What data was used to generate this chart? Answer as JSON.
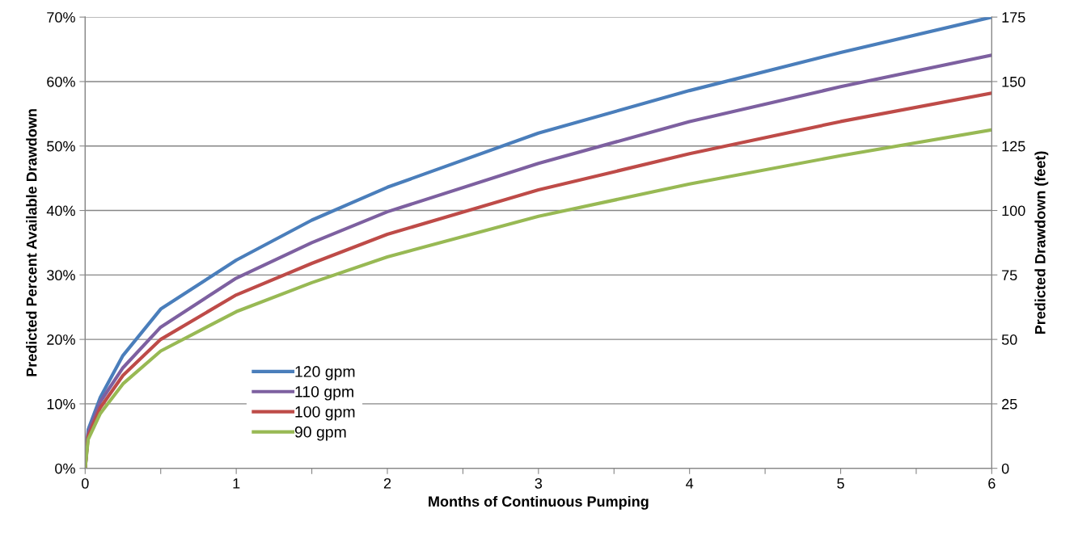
{
  "chart_data": {
    "type": "line",
    "xlabel": "Months of Continuous Pumping",
    "ylabel": "Predicted Percent Available Drawdown",
    "y2label": "Predicted Drawdown (feet)",
    "x": [
      0,
      0.02,
      0.1,
      0.25,
      0.5,
      1,
      1.5,
      2,
      3,
      4,
      5,
      6
    ],
    "series": [
      {
        "name": "120 gpm",
        "color": "#4a7ebb",
        "values": [
          0,
          6,
          11,
          17.5,
          24.7,
          32.3,
          38.5,
          43.6,
          52,
          58.6,
          64.5,
          70
        ]
      },
      {
        "name": "110 gpm",
        "color": "#7d60a0",
        "values": [
          0,
          5.5,
          10.3,
          15.6,
          21.9,
          29.5,
          35,
          39.8,
          47.3,
          53.8,
          59.2,
          64.1
        ]
      },
      {
        "name": "100 gpm",
        "color": "#be4b48",
        "values": [
          0,
          5,
          9.4,
          14.4,
          20,
          26.9,
          31.8,
          36.3,
          43.2,
          48.8,
          53.8,
          58.2
        ]
      },
      {
        "name": "90 gpm",
        "color": "#98b954",
        "values": [
          0,
          4.5,
          8.5,
          13.1,
          18.2,
          24.3,
          28.8,
          32.8,
          39.1,
          44.1,
          48.5,
          52.5
        ]
      }
    ],
    "xlim": [
      0,
      6
    ],
    "xticks": [
      0,
      {
        "value": 0.5,
        "label": null
      },
      1,
      {
        "value": 1.5,
        "label": null
      },
      2,
      {
        "value": 2.5,
        "label": null
      },
      3,
      {
        "value": 3.5,
        "label": null
      },
      4,
      {
        "value": 4.5,
        "label": null
      },
      5,
      {
        "value": 5.5,
        "label": null
      },
      6
    ],
    "ylim": [
      0,
      70
    ],
    "yticks": [
      {
        "value": 0,
        "label": "0%"
      },
      {
        "value": 10,
        "label": "10%"
      },
      {
        "value": 20,
        "label": "20%"
      },
      {
        "value": 30,
        "label": "30%"
      },
      {
        "value": 40,
        "label": "40%"
      },
      {
        "value": 50,
        "label": "50%"
      },
      {
        "value": 60,
        "label": "60%"
      },
      {
        "value": 70,
        "label": "70%"
      }
    ],
    "y2lim": [
      0,
      175
    ],
    "y2ticks": [
      0,
      25,
      50,
      75,
      100,
      125,
      150,
      175
    ],
    "grid": "y",
    "legend": "bottom left",
    "marker": "none",
    "line_style": "solid"
  }
}
